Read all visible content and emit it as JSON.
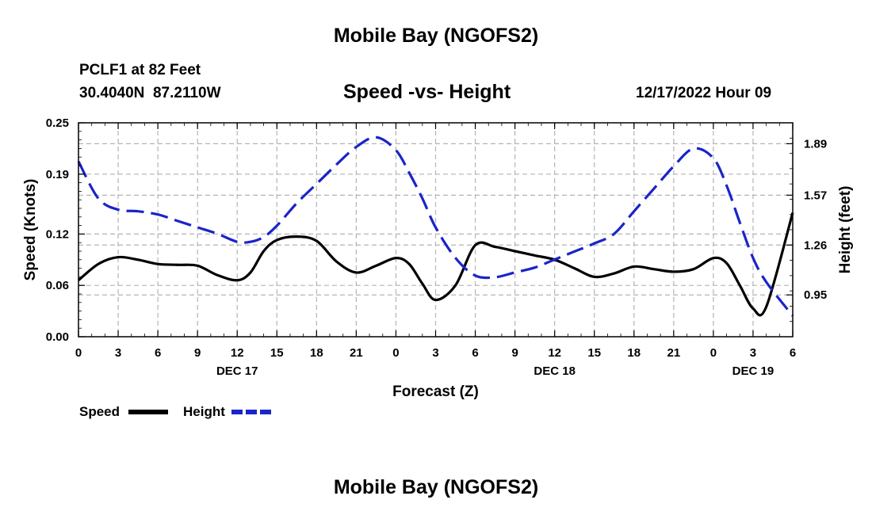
{
  "header": {
    "title": "Mobile Bay (NGOFS2)",
    "station": "PCLF1 at 82 Feet",
    "coords": "30.4040N  87.2110W",
    "subtitle": "Speed -vs- Height",
    "datetime": "12/17/2022 Hour 09"
  },
  "footer": {
    "title": "Mobile Bay (NGOFS2)"
  },
  "legend": {
    "speed_label": "Speed",
    "height_label": "Height"
  },
  "colors": {
    "speed": "#000000",
    "height": "#1a24c9",
    "grid": "#b4b4b4"
  },
  "chart_data": {
    "type": "line",
    "title": "Speed -vs- Height",
    "xlabel": "Forecast (Z)",
    "ylabel": "Speed (Knots)",
    "y2label": "Height (feet)",
    "xlim": [
      0,
      54
    ],
    "ylim": [
      0,
      0.25
    ],
    "y2lim": [
      0.69,
      2.02
    ],
    "x_ticks": [
      0,
      3,
      6,
      9,
      12,
      15,
      18,
      21,
      24,
      27,
      30,
      33,
      36,
      39,
      42,
      45,
      48,
      51,
      54
    ],
    "x_tick_labels": [
      "0",
      "3",
      "6",
      "9",
      "12",
      "15",
      "18",
      "21",
      "0",
      "3",
      "6",
      "9",
      "12",
      "15",
      "18",
      "21",
      "0",
      "3",
      "6"
    ],
    "y_ticks": [
      0.0,
      0.06,
      0.12,
      0.19,
      0.25
    ],
    "y_tick_labels": [
      "0.00",
      "0.06",
      "0.12",
      "0.19",
      "0.25"
    ],
    "y2_ticks": [
      0.95,
      1.26,
      1.57,
      1.89
    ],
    "y2_tick_labels": [
      "0.95",
      "1.26",
      "1.57",
      "1.89"
    ],
    "day_labels": [
      {
        "x": 12,
        "label": "DEC 17"
      },
      {
        "x": 36,
        "label": "DEC 18"
      },
      {
        "x": 51,
        "label": "DEC 19"
      }
    ],
    "series": [
      {
        "name": "Speed",
        "axis": "left",
        "x": [
          0,
          1.5,
          3,
          4.5,
          6,
          7.5,
          9,
          10.5,
          12,
          13,
          14,
          15,
          16.5,
          18,
          19.5,
          21,
          22.5,
          24,
          25,
          26,
          27,
          28.5,
          30,
          31.5,
          33,
          34.5,
          36,
          37.5,
          39,
          40.5,
          42,
          43.5,
          45,
          46.5,
          48,
          49,
          50,
          51,
          52,
          54
        ],
        "values": [
          0.066,
          0.085,
          0.093,
          0.09,
          0.085,
          0.084,
          0.083,
          0.072,
          0.066,
          0.075,
          0.1,
          0.113,
          0.117,
          0.112,
          0.088,
          0.075,
          0.083,
          0.092,
          0.085,
          0.062,
          0.043,
          0.06,
          0.107,
          0.105,
          0.1,
          0.095,
          0.09,
          0.08,
          0.07,
          0.074,
          0.082,
          0.079,
          0.076,
          0.079,
          0.092,
          0.086,
          0.06,
          0.033,
          0.035,
          0.145
        ]
      },
      {
        "name": "Height",
        "axis": "right",
        "x": [
          0,
          1.5,
          3,
          4.5,
          6,
          7.5,
          9,
          10.5,
          12,
          13,
          14,
          15,
          16.5,
          18,
          19.5,
          21,
          22.5,
          24,
          25,
          26,
          27,
          28.5,
          30,
          31.5,
          33,
          34.5,
          36,
          37.5,
          39,
          40.5,
          42,
          43.5,
          45,
          46.5,
          48,
          49,
          50,
          51,
          52,
          54
        ],
        "values": [
          1.78,
          1.55,
          1.48,
          1.47,
          1.45,
          1.41,
          1.37,
          1.33,
          1.28,
          1.28,
          1.31,
          1.38,
          1.52,
          1.64,
          1.76,
          1.87,
          1.93,
          1.85,
          1.71,
          1.55,
          1.37,
          1.18,
          1.07,
          1.06,
          1.09,
          1.12,
          1.17,
          1.22,
          1.27,
          1.33,
          1.47,
          1.61,
          1.75,
          1.86,
          1.8,
          1.63,
          1.4,
          1.18,
          1.03,
          0.82
        ]
      }
    ]
  }
}
